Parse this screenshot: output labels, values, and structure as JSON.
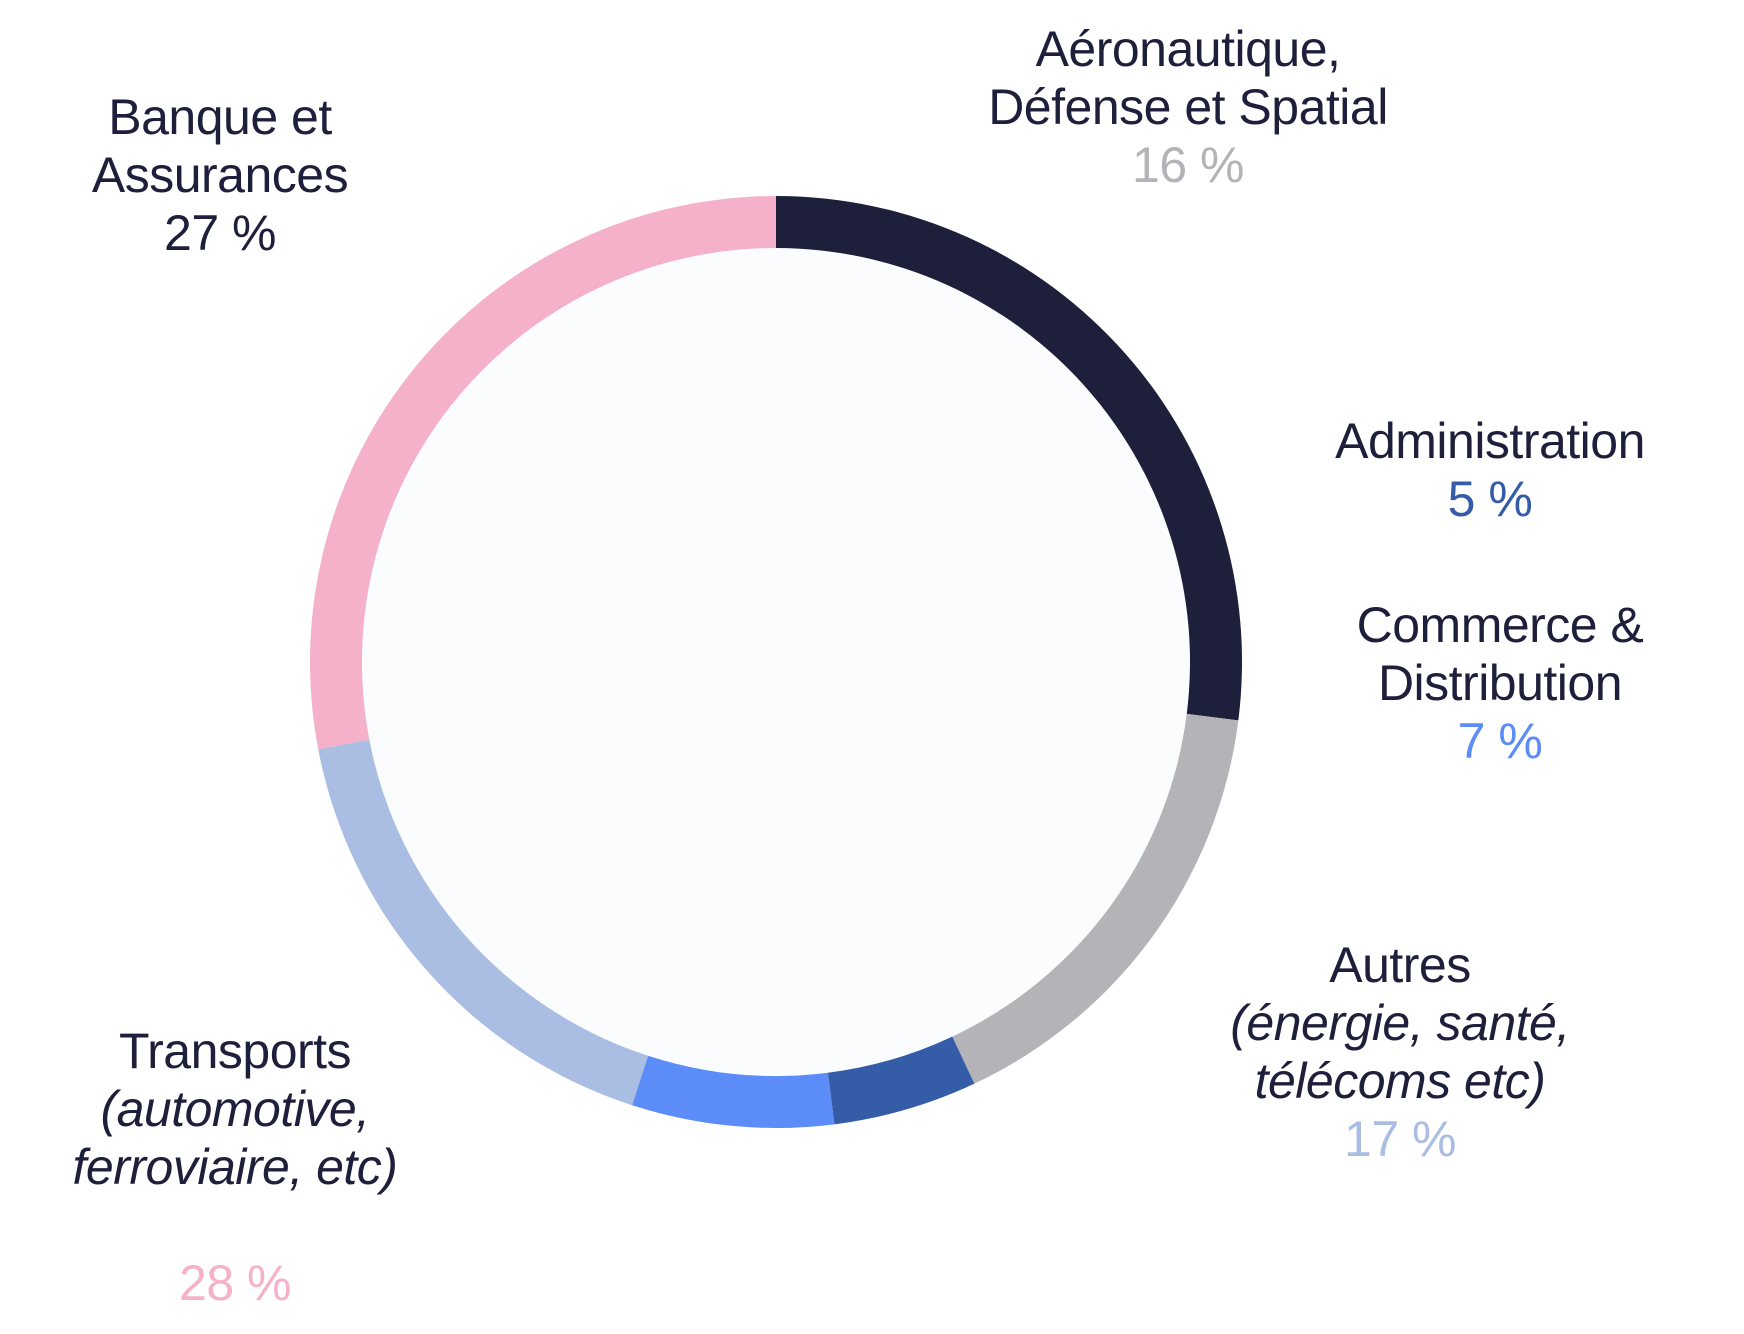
{
  "chart_data": {
    "type": "pie",
    "donut": true,
    "slices": [
      {
        "name": "Banque et Assurances",
        "label_lines": [
          "Banque et",
          "Assurances"
        ],
        "sub_lines": [],
        "value_label": "27 %",
        "value": 27,
        "color": "#1e1f3b",
        "value_color": "#1e1f3b"
      },
      {
        "name": "Aéronautique, Défense et Spatial",
        "label_lines": [
          "Aéronautique,",
          "Défense et Spatial"
        ],
        "sub_lines": [],
        "value_label": "16 %",
        "value": 16,
        "color": "#b3b3b8",
        "value_color": "#b3b3b8"
      },
      {
        "name": "Administration",
        "label_lines": [
          "Administration"
        ],
        "sub_lines": [],
        "value_label": "5 %",
        "value": 5,
        "color": "#355ca6",
        "value_color": "#355ca6"
      },
      {
        "name": "Commerce & Distribution",
        "label_lines": [
          "Commerce &",
          "Distribution"
        ],
        "sub_lines": [],
        "value_label": "7 %",
        "value": 7,
        "color": "#5b8cf7",
        "value_color": "#5b8cf7"
      },
      {
        "name": "Autres",
        "label_lines": [
          "Autres"
        ],
        "sub_lines": [
          "(énergie, santé,",
          "télécoms etc)"
        ],
        "value_label": "17 %",
        "value": 17,
        "color": "#aabde2",
        "value_color": "#aabde2"
      },
      {
        "name": "Transports",
        "label_lines": [
          "Transports"
        ],
        "sub_lines": [
          "(automotive,",
          "ferroviaire, etc)"
        ],
        "value_label": "28  %",
        "value": 28,
        "color": "#f5b1c9",
        "value_color": "#f5b1c9"
      }
    ],
    "center_fill": "#fbfcfe"
  }
}
